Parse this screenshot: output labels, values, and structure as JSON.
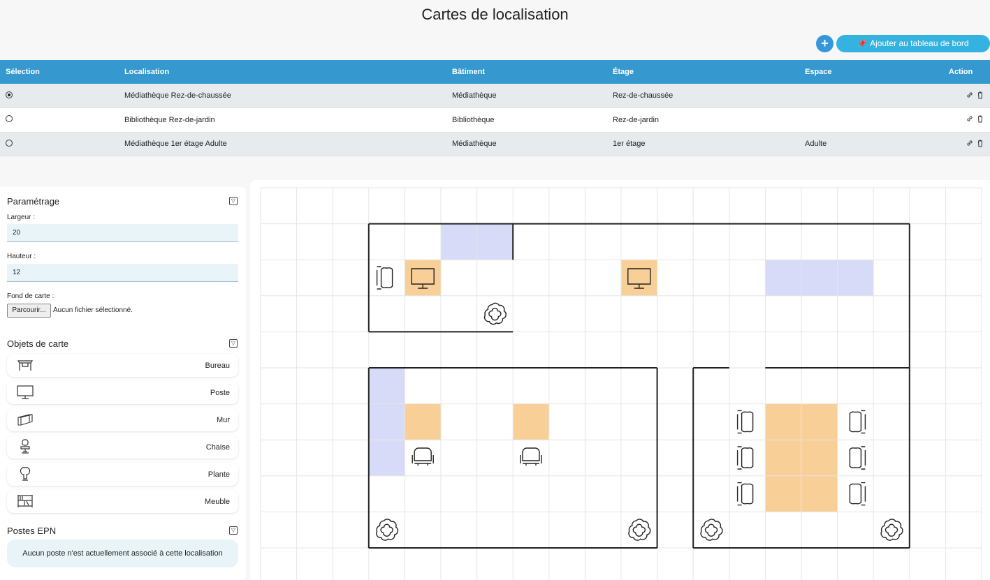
{
  "page_title": "Cartes de localisation",
  "toolbar": {
    "add_label": "+",
    "dashboard_label": "Ajouter au tableau de bord",
    "dashboard_icon": "pin-icon"
  },
  "table": {
    "headers": [
      "Sélection",
      "Localisation",
      "Bâtiment",
      "Étage",
      "Espace",
      "Action"
    ],
    "rows": [
      {
        "selected": true,
        "localisation": "Médiathèque Rez-de-chaussée",
        "batiment": "Médiathèque",
        "etage": "Rez-de-chaussée",
        "espace": ""
      },
      {
        "selected": false,
        "localisation": "Bibliothèque Rez-de-jardin",
        "batiment": "Bibliothèque",
        "etage": "Rez-de-jardin",
        "espace": ""
      },
      {
        "selected": false,
        "localisation": "Médiathèque 1er étage Adulte",
        "batiment": "Médiathèque",
        "etage": "1er étage",
        "espace": "Adulte"
      }
    ],
    "action_icons": [
      "link-icon",
      "trash-icon"
    ]
  },
  "settings": {
    "title": "Paramétrage",
    "width_label": "Largeur :",
    "width_value": "20",
    "height_label": "Hauteur :",
    "height_value": "12",
    "background_label": "Fond de carte :",
    "browse_label": "Parcourir...",
    "no_file_label": "Aucun fichier sélectionné."
  },
  "objects": {
    "title": "Objets de carte",
    "items": [
      {
        "label": "Bureau",
        "icon": "desk-icon"
      },
      {
        "label": "Poste",
        "icon": "monitor-icon"
      },
      {
        "label": "Mur",
        "icon": "wall-icon"
      },
      {
        "label": "Chaise",
        "icon": "chair-icon"
      },
      {
        "label": "Plante",
        "icon": "plant-icon"
      },
      {
        "label": "Meuble",
        "icon": "shelf-icon"
      }
    ]
  },
  "epn": {
    "title": "Postes EPN",
    "empty_message": "Aucun poste n'est actuellement associé à cette localisation"
  },
  "map": {
    "cols": 20,
    "rows": 12,
    "colors": {
      "desk": "#f9cf98",
      "wall": "#d8dbf8",
      "grid": "#e6e6e6",
      "border": "#222222"
    },
    "desk_cells": [
      [
        4,
        2
      ],
      [
        10,
        2
      ],
      [
        4,
        6
      ],
      [
        7,
        6
      ],
      [
        14,
        6
      ],
      [
        15,
        6
      ],
      [
        14,
        7
      ],
      [
        15,
        7
      ],
      [
        14,
        8
      ],
      [
        15,
        8
      ]
    ],
    "wall_cells": [
      [
        5,
        1
      ],
      [
        6,
        1
      ],
      [
        14,
        2
      ],
      [
        15,
        2
      ],
      [
        16,
        2
      ],
      [
        3,
        5
      ],
      [
        3,
        6
      ],
      [
        3,
        7
      ]
    ],
    "objects": [
      {
        "type": "monitor-icon",
        "cell": [
          4,
          2
        ]
      },
      {
        "type": "monitor-icon",
        "cell": [
          10,
          2
        ]
      },
      {
        "type": "chair-side-icon",
        "cell": [
          3,
          2
        ]
      },
      {
        "type": "plant-icon",
        "cell": [
          6,
          3
        ]
      },
      {
        "type": "chair-icon",
        "cell": [
          4,
          7
        ]
      },
      {
        "type": "chair-icon",
        "cell": [
          7,
          7
        ]
      },
      {
        "type": "chair-side-icon",
        "cell": [
          13,
          6
        ]
      },
      {
        "type": "chair-side-icon",
        "cell": [
          13,
          7
        ]
      },
      {
        "type": "chair-side-icon",
        "cell": [
          13,
          8
        ]
      },
      {
        "type": "chair-side-right-icon",
        "cell": [
          16,
          6
        ]
      },
      {
        "type": "chair-side-right-icon",
        "cell": [
          16,
          7
        ]
      },
      {
        "type": "chair-side-right-icon",
        "cell": [
          16,
          8
        ]
      },
      {
        "type": "plant-icon",
        "cell": [
          3,
          9
        ]
      },
      {
        "type": "plant-icon",
        "cell": [
          10,
          9
        ]
      },
      {
        "type": "plant-icon",
        "cell": [
          12,
          9
        ]
      },
      {
        "type": "plant-icon",
        "cell": [
          17,
          9
        ]
      }
    ],
    "walls": [
      [
        [
          3,
          1
        ],
        [
          18,
          1
        ]
      ],
      [
        [
          18,
          1
        ],
        [
          18,
          10
        ]
      ],
      [
        [
          3,
          1
        ],
        [
          3,
          4
        ]
      ],
      [
        [
          3,
          4
        ],
        [
          7,
          4
        ]
      ],
      [
        [
          7,
          1
        ],
        [
          7,
          2
        ]
      ],
      [
        [
          3,
          5
        ],
        [
          11,
          5
        ]
      ],
      [
        [
          3,
          5
        ],
        [
          3,
          10
        ]
      ],
      [
        [
          3,
          10
        ],
        [
          11,
          10
        ]
      ],
      [
        [
          11,
          5
        ],
        [
          11,
          10
        ]
      ],
      [
        [
          12,
          5
        ],
        [
          13,
          5
        ]
      ],
      [
        [
          12,
          5
        ],
        [
          12,
          10
        ]
      ],
      [
        [
          12,
          10
        ],
        [
          18,
          10
        ]
      ],
      [
        [
          14,
          5
        ],
        [
          18,
          5
        ]
      ]
    ]
  }
}
